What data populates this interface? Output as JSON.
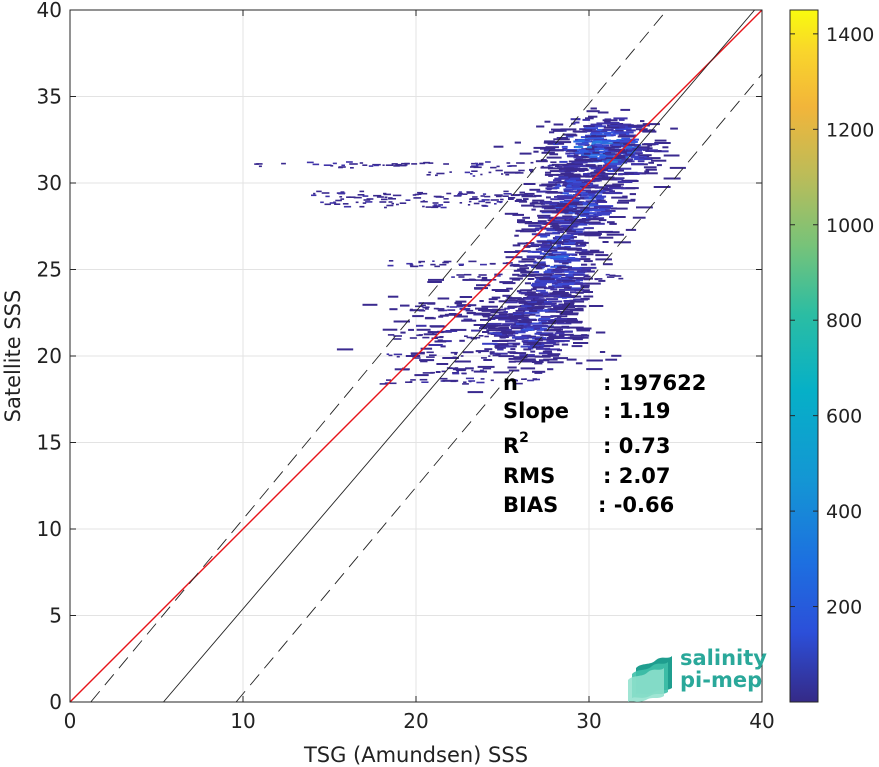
{
  "chart_data": {
    "type": "heatmap",
    "title": "",
    "xlabel": "TSG (Amundsen) SSS",
    "ylabel": "Satellite SSS",
    "xlim": [
      0,
      40
    ],
    "ylim": [
      0,
      40
    ],
    "xticks": [
      0,
      10,
      20,
      30,
      40
    ],
    "yticks": [
      0,
      5,
      10,
      15,
      20,
      25,
      30,
      35,
      40
    ],
    "grid": true,
    "colorbar": {
      "colormap": "parula",
      "range": [
        0,
        1450
      ],
      "ticks": [
        200,
        400,
        600,
        800,
        1000,
        1200,
        1400
      ]
    },
    "lines": [
      {
        "kind": "regression",
        "color": "#e8141a",
        "points": [
          [
            0,
            0
          ],
          [
            40,
            40
          ]
        ]
      },
      {
        "kind": "one-to-one",
        "color": "#222222",
        "points": [
          [
            5.4,
            0
          ],
          [
            40,
            40.5
          ]
        ]
      },
      {
        "kind": "upper-bound",
        "color": "#222222",
        "dash": true,
        "points": [
          [
            1.2,
            0
          ],
          [
            40,
            46.6
          ]
        ]
      },
      {
        "kind": "lower-bound",
        "color": "#222222",
        "dash": true,
        "points": [
          [
            9.6,
            0
          ],
          [
            40,
            36.3
          ]
        ]
      }
    ],
    "density_clusters": [
      {
        "x": 30.5,
        "y": 32.0,
        "sx": 1.6,
        "sy": 1.0,
        "n": 420,
        "weight": 1.0
      },
      {
        "x": 29.0,
        "y": 29.0,
        "sx": 1.3,
        "sy": 1.3,
        "n": 320,
        "weight": 0.7
      },
      {
        "x": 27.8,
        "y": 25.5,
        "sx": 1.1,
        "sy": 1.8,
        "n": 340,
        "weight": 0.6
      },
      {
        "x": 26.5,
        "y": 22.0,
        "sx": 1.4,
        "sy": 1.3,
        "n": 260,
        "weight": 0.5
      },
      {
        "x": 24.0,
        "y": 21.5,
        "sx": 3.0,
        "sy": 1.2,
        "n": 180,
        "weight": 0.3
      }
    ],
    "sparse_streaks": [
      {
        "y": 31.1,
        "x0": 10.5,
        "x1": 29.0
      },
      {
        "y": 30.6,
        "x0": 20.5,
        "x1": 27.0
      },
      {
        "y": 29.4,
        "x0": 13.8,
        "x1": 27.5
      },
      {
        "y": 29.1,
        "x0": 15.2,
        "x1": 26.0
      },
      {
        "y": 28.8,
        "x0": 13.6,
        "x1": 25.0
      },
      {
        "y": 25.4,
        "x0": 17.8,
        "x1": 26.0
      },
      {
        "y": 24.6,
        "x0": 22.0,
        "x1": 32.0
      },
      {
        "y": 22.8,
        "x0": 19.5,
        "x1": 29.0
      },
      {
        "y": 21.2,
        "x0": 17.8,
        "x1": 26.0
      },
      {
        "y": 20.1,
        "x0": 17.5,
        "x1": 24.5
      },
      {
        "y": 19.2,
        "x0": 19.0,
        "x1": 24.0
      },
      {
        "y": 18.6,
        "x0": 17.5,
        "x1": 27.0
      }
    ]
  },
  "stats": [
    {
      "label": "n",
      "value": ": 197622"
    },
    {
      "label": "Slope",
      "value": ": 1.19"
    },
    {
      "label": "R",
      "sup": "2",
      "value": ": 0.73"
    },
    {
      "label": "RMS",
      "value": ": 2.07"
    },
    {
      "label": "BIAS",
      "value": ": -0.66"
    }
  ],
  "logo": {
    "line1": "salinity",
    "line2": "pi-mep",
    "color": "#2aa89a"
  }
}
